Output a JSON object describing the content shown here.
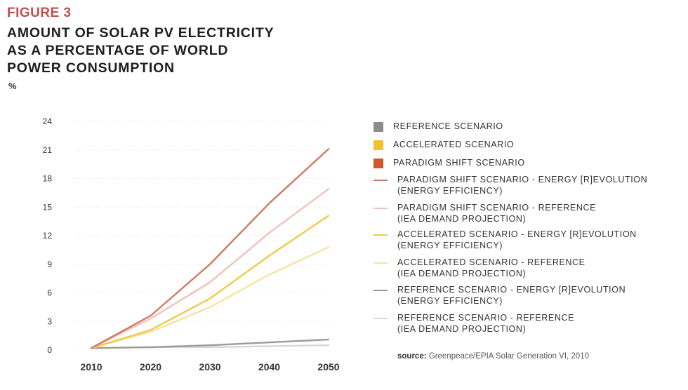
{
  "figure": {
    "label": "FIGURE 3",
    "title_lines": [
      "AMOUNT OF SOLAR PV ELECTRICITY",
      "AS A PERCENTAGE OF WORLD",
      "POWER CONSUMPTION"
    ],
    "unit": "%"
  },
  "source": {
    "prefix": "source:",
    "text": "Greenpeace/EPIA Solar Generation VI, 2010"
  },
  "legend": [
    {
      "kind": "swatch",
      "color": "#8c8c8c",
      "text": "REFERENCE SCENARIO"
    },
    {
      "kind": "swatch",
      "color": "#f0c02e",
      "text": "ACCELERATED SCENARIO"
    },
    {
      "kind": "swatch",
      "color": "#d2562a",
      "text": "PARADIGM SHIFT SCENARIO"
    },
    {
      "kind": "line",
      "color": "#cf7a66",
      "text": "PARADIGM SHIFT SCENARIO - ENERGY [R]EVOLUTION\n(ENERGY EFFICIENCY)"
    },
    {
      "kind": "line",
      "color": "#f0c2bb",
      "text": "PARADIGM SHIFT SCENARIO - REFERENCE\n(IEA DEMAND PROJECTION)"
    },
    {
      "kind": "line",
      "color": "#f2c94c",
      "text": "ACCELERATED SCENARIO - ENERGY [R]EVOLUTION\n(ENERGY EFFICIENCY)"
    },
    {
      "kind": "line",
      "color": "#f7e3a2",
      "text": "ACCELERATED SCENARIO - REFERENCE\n(IEA DEMAND PROJECTION)"
    },
    {
      "kind": "line",
      "color": "#9b9b9b",
      "text": "REFERENCE SCENARIO - ENERGY [R]EVOLUTION\n(ENERGY EFFICIENCY)"
    },
    {
      "kind": "line",
      "color": "#d6d6d6",
      "text": "REFERENCE SCENARIO - REFERENCE\n(IEA DEMAND PROJECTION)"
    }
  ],
  "chart_data": {
    "type": "line",
    "x": [
      2010,
      2020,
      2030,
      2040,
      2050
    ],
    "ylim": [
      0,
      24
    ],
    "yticks": [
      0,
      3,
      6,
      9,
      12,
      15,
      18,
      21,
      24
    ],
    "grid": true,
    "legend_position": "right",
    "series": [
      {
        "name": "REFERENCE SCENARIO - REFERENCE (IEA DEMAND PROJECTION)",
        "color": "#d6d6d6",
        "values": [
          0.2,
          0.3,
          0.3,
          0.4,
          0.5
        ]
      },
      {
        "name": "REFERENCE SCENARIO - ENERGY [R]EVOLUTION (ENERGY EFFICIENCY)",
        "color": "#9b9b9b",
        "values": [
          0.2,
          0.3,
          0.5,
          0.8,
          1.1
        ]
      },
      {
        "name": "ACCELERATED SCENARIO - REFERENCE (IEA DEMAND PROJECTION)",
        "color": "#f7e3a2",
        "values": [
          0.2,
          1.9,
          4.5,
          7.9,
          10.8
        ]
      },
      {
        "name": "ACCELERATED SCENARIO - ENERGY [R]EVOLUTION (ENERGY EFFICIENCY)",
        "color": "#f2c94c",
        "values": [
          0.2,
          2.1,
          5.4,
          9.9,
          14.1
        ]
      },
      {
        "name": "PARADIGM SHIFT SCENARIO - REFERENCE (IEA DEMAND PROJECTION)",
        "color": "#f0c2bb",
        "values": [
          0.2,
          3.3,
          7.1,
          12.3,
          16.9
        ]
      },
      {
        "name": "PARADIGM SHIFT SCENARIO - ENERGY [R]EVOLUTION (ENERGY EFFICIENCY)",
        "color": "#cf7a66",
        "values": [
          0.2,
          3.6,
          9.0,
          15.4,
          21.1
        ]
      }
    ]
  }
}
